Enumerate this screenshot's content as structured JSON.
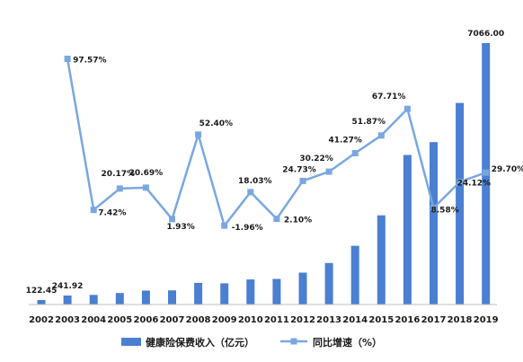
{
  "chart_data": {
    "type": "bar",
    "title": "",
    "xlabel": "",
    "ylabel": "",
    "categories": [
      "2002",
      "2003",
      "2004",
      "2005",
      "2006",
      "2007",
      "2008",
      "2009",
      "2010",
      "2011",
      "2012",
      "2013",
      "2014",
      "2015",
      "2016",
      "2017",
      "2018",
      "2019"
    ],
    "series": [
      {
        "name": "健康险保费收入（亿元）",
        "type": "bar",
        "color": "#4a7fd1",
        "values": [
          122.45,
          241.92,
          260,
          312,
          376,
          384,
          585,
          574,
          677,
          692,
          862,
          1123,
          1587,
          2410,
          4042,
          4389,
          5448,
          7066.0
        ],
        "labels": [
          "122.45",
          "241.92",
          "",
          "",
          "",
          "",
          "",
          "",
          "",
          "",
          "",
          "",
          "",
          "",
          "",
          "",
          "",
          "7066.00"
        ]
      },
      {
        "name": "同比增速（%）",
        "type": "line",
        "color": "#7aa7e0",
        "values": [
          null,
          97.57,
          7.42,
          20.17,
          20.69,
          1.93,
          52.4,
          -1.96,
          18.03,
          2.1,
          24.73,
          30.22,
          41.27,
          51.87,
          67.71,
          8.58,
          24.12,
          29.7
        ],
        "labels": [
          "",
          "97.57%",
          "7.42%",
          "20.17%",
          "20.69%",
          "1.93%",
          "52.40%",
          "-1.96%",
          "18.03%",
          "2.10%",
          "24.73%",
          "30.22%",
          "41.27%",
          "51.87%",
          "67.71%",
          "8.58%",
          "24.12%",
          "29.70%"
        ]
      }
    ],
    "grid": false,
    "legend": "bottom"
  }
}
